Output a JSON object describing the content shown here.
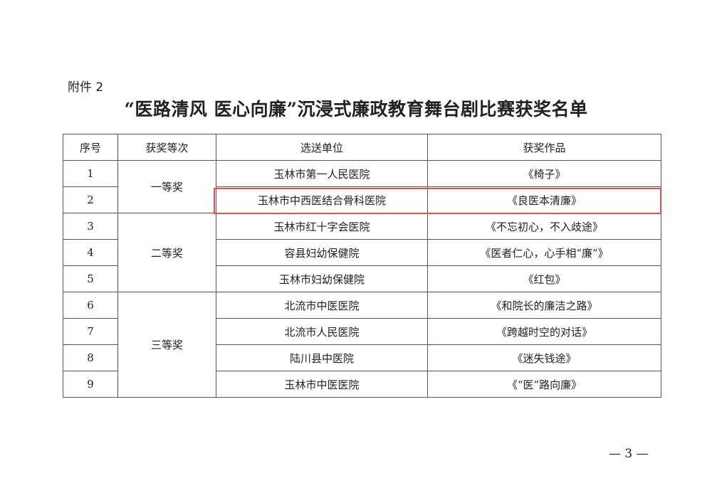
{
  "attachment_label": "附件 2",
  "title": "“医路清风  医心向廉”沉浸式廉政教育舞台剧比赛获奖名单",
  "table": {
    "headers": [
      "序号",
      "获奖等次",
      "选送单位",
      "获奖作品"
    ],
    "award_levels": [
      "一等奖",
      "二等奖",
      "三等奖"
    ],
    "rows": [
      {
        "no": "1",
        "unit": "玉林市第一人民医院",
        "work": "《椅子》"
      },
      {
        "no": "2",
        "unit": "玉林市中西医结合骨科医院",
        "work": "《良医本清廉》"
      },
      {
        "no": "3",
        "unit": "玉林市红十字会医院",
        "work": "《不忘初心，不入歧途》"
      },
      {
        "no": "4",
        "unit": "容县妇幼保健院",
        "work": "《医者仁心，心手相“廉”》"
      },
      {
        "no": "5",
        "unit": "玉林市妇幼保健院",
        "work": "《红包》"
      },
      {
        "no": "6",
        "unit": "北流市中医医院",
        "work": "《和院长的廉洁之路》"
      },
      {
        "no": "7",
        "unit": "北流市人民医院",
        "work": "《跨越时空的对话》"
      },
      {
        "no": "8",
        "unit": "陆川县中医院",
        "work": "《迷失钱途》"
      },
      {
        "no": "9",
        "unit": "玉林市中医医院",
        "work": "《“医”路向廉》"
      }
    ],
    "highlight_color": "#d9534f"
  },
  "page_number": "— 3 —"
}
